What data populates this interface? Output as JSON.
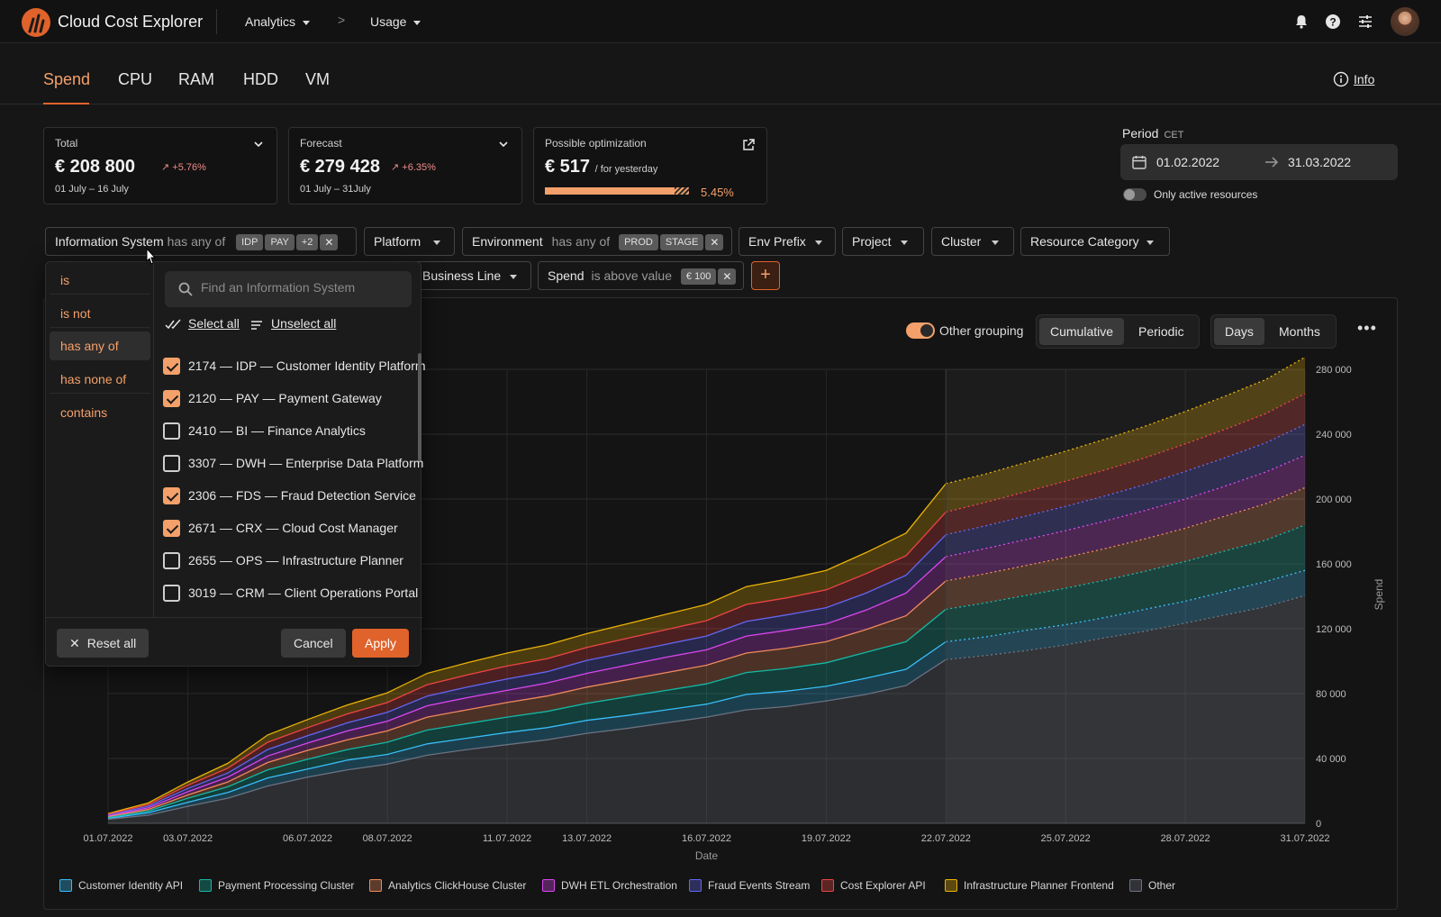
{
  "app": {
    "title": "Cloud Cost Explorer"
  },
  "nav": {
    "analytics": "Analytics",
    "usage": "Usage",
    "separator": ">"
  },
  "tabs": [
    {
      "label": "Spend",
      "active": true
    },
    {
      "label": "CPU"
    },
    {
      "label": "RAM"
    },
    {
      "label": "HDD"
    },
    {
      "label": "VM"
    }
  ],
  "info": {
    "label": "Info"
  },
  "cards": {
    "total": {
      "label": "Total",
      "value": "€ 208 800",
      "change": "+5.76%",
      "range": "01 July – 16 July"
    },
    "forecast": {
      "label": "Forecast",
      "value": "€ 279 428",
      "change": "+6.35%",
      "range": "01 July – 31July"
    },
    "optimization": {
      "label": "Possible optimization",
      "value": "€ 517",
      "suffix": "/ for yesterday",
      "percent": "5.45%"
    }
  },
  "period": {
    "label": "Period",
    "tz": "CET",
    "from": "01.02.2022",
    "to": "31.03.2022",
    "active_only": "Only active resources"
  },
  "filters": {
    "info_system": {
      "label": "Information System",
      "op": "has any of",
      "tags": [
        "IDP",
        "PAY",
        "+2"
      ]
    },
    "platform": {
      "label": "Platform"
    },
    "environment": {
      "label": "Environment",
      "op": "has any of",
      "tags": [
        "PROD",
        "STAGE"
      ]
    },
    "env_prefix": {
      "label": "Env Prefix"
    },
    "project": {
      "label": "Project"
    },
    "cluster": {
      "label": "Cluster"
    },
    "resource_category": {
      "label": "Resource Category"
    },
    "business_line": {
      "label": "Business Line"
    },
    "spend": {
      "label": "Spend",
      "op": "is above value",
      "tag": "€ 100"
    },
    "add": "+"
  },
  "dropdown": {
    "operators": [
      "is",
      "is not",
      "has any of",
      "has none of",
      "contains"
    ],
    "selected_operator": "has any of",
    "search_placeholder": "Find an Information System",
    "select_all": "Select all",
    "unselect_all": "Unselect all",
    "options": [
      {
        "label": "2174 — IDP — Customer Identity Platform",
        "checked": true
      },
      {
        "label": "2120 — PAY — Payment Gateway",
        "checked": true
      },
      {
        "label": "2410 — BI — Finance Analytics",
        "checked": false
      },
      {
        "label": "3307 — DWH — Enterprise Data Platform",
        "checked": false
      },
      {
        "label": "2306 — FDS — Fraud Detection Service",
        "checked": true
      },
      {
        "label": "2671 — CRX — Cloud Cost Manager",
        "checked": true
      },
      {
        "label": "2655 — OPS — Infrastructure Planner",
        "checked": false
      },
      {
        "label": "3019 — CRM — Client Operations Portal",
        "checked": false
      }
    ],
    "reset": "Reset all",
    "cancel": "Cancel",
    "apply": "Apply"
  },
  "chart_controls": {
    "other_grouping": "Other grouping",
    "mode": [
      "Cumulative",
      "Periodic"
    ],
    "mode_active": "Cumulative",
    "granularity": [
      "Days",
      "Months"
    ],
    "granularity_active": "Days",
    "more": "•••"
  },
  "chart_data": {
    "type": "area",
    "stacked": true,
    "xlabel": "Date",
    "ylabel": "Spend",
    "ylim": [
      0,
      280000
    ],
    "y_ticks": [
      "280 000",
      "240 000",
      "200 000",
      "160 000",
      "120 000",
      "80 000",
      "40 000",
      "0"
    ],
    "x_tick_labels": [
      "01.07.2022",
      "03.07.2022",
      "06.07.2022",
      "08.07.2022",
      "11.07.2022",
      "13.07.2022",
      "16.07.2022",
      "19.07.2022",
      "22.07.2022",
      "25.07.2022",
      "28.07.2022",
      "31.07.2022"
    ],
    "x_days": [
      1,
      2,
      3,
      4,
      5,
      6,
      7,
      8,
      9,
      10,
      11,
      12,
      13,
      14,
      15,
      16,
      17,
      18,
      19,
      20,
      21,
      22,
      23,
      24,
      25,
      26,
      27,
      28,
      29,
      30,
      31
    ],
    "forecast_from_day": 22,
    "grid": true,
    "legend_position": "bottom",
    "series": [
      {
        "name": "Other",
        "color": "#6b7280",
        "cumulative": [
          2500,
          5000,
          10500,
          15500,
          23000,
          28500,
          33000,
          36500,
          42000,
          45500,
          48500,
          51500,
          55500,
          58500,
          62000,
          65500,
          70000,
          72000,
          75500,
          79500,
          85000,
          101000,
          103500,
          106500,
          110000,
          114500,
          118500,
          123500,
          128500,
          133500,
          140500
        ]
      },
      {
        "name": "Customer Identity API",
        "color": "#38bdf8",
        "cumulative": [
          3000,
          6500,
          13000,
          19000,
          28000,
          33500,
          39000,
          42500,
          49000,
          52500,
          56000,
          59000,
          63500,
          66500,
          70000,
          73500,
          79500,
          81500,
          84500,
          89500,
          95000,
          112000,
          115000,
          119000,
          122500,
          127000,
          132000,
          137000,
          143000,
          149000,
          156000
        ]
      },
      {
        "name": "Payment Processing Cluster",
        "color": "#14b8a6",
        "cumulative": [
          3500,
          7500,
          15500,
          22500,
          33000,
          39500,
          45500,
          50000,
          57500,
          61500,
          65500,
          69000,
          74000,
          78000,
          82000,
          86000,
          93000,
          95500,
          99000,
          105500,
          112000,
          132000,
          136000,
          140500,
          145000,
          150000,
          155500,
          161500,
          168000,
          174500,
          184000
        ]
      },
      {
        "name": "Analytics ClickHouse Cluster",
        "color": "#f08a5d",
        "cumulative": [
          4000,
          8500,
          17500,
          25500,
          37500,
          45000,
          51500,
          57000,
          65500,
          70000,
          74500,
          78500,
          84000,
          88500,
          93000,
          97500,
          105000,
          108000,
          112000,
          119500,
          128000,
          149500,
          154000,
          159000,
          164000,
          169500,
          175500,
          182000,
          189500,
          197000,
          207000
        ]
      },
      {
        "name": "DWH ETL Orchestration",
        "color": "#d946ef",
        "cumulative": [
          4500,
          9500,
          19500,
          28500,
          41500,
          49500,
          57000,
          63000,
          72500,
          77500,
          82000,
          86500,
          92500,
          97500,
          102500,
          107000,
          115500,
          119000,
          123000,
          131500,
          142000,
          164500,
          169500,
          175000,
          180500,
          186500,
          193000,
          200000,
          208000,
          216500,
          227000
        ]
      },
      {
        "name": "Fraud Events Stream",
        "color": "#6366f1",
        "cumulative": [
          5000,
          10500,
          21500,
          31000,
          45500,
          54000,
          62000,
          68500,
          78500,
          84000,
          89000,
          93500,
          100500,
          105500,
          110500,
          115500,
          124500,
          128500,
          133000,
          142000,
          153000,
          178000,
          183500,
          189500,
          195500,
          202000,
          209000,
          217000,
          225500,
          234500,
          246000
        ]
      },
      {
        "name": "Cost Explorer API",
        "color": "#ef4444",
        "cumulative": [
          5500,
          11500,
          23500,
          34000,
          50000,
          59000,
          67500,
          74500,
          85500,
          91500,
          97000,
          101500,
          108500,
          114000,
          119500,
          125000,
          135000,
          139000,
          144000,
          154000,
          165000,
          192000,
          198000,
          204500,
          211000,
          218000,
          225500,
          234000,
          243000,
          252500,
          265000
        ]
      },
      {
        "name": "Infrastructure Planner Frontend",
        "color": "#eab308",
        "cumulative": [
          6000,
          12500,
          25500,
          37000,
          54500,
          64000,
          73000,
          80500,
          92500,
          99000,
          105000,
          110000,
          117000,
          123000,
          129000,
          135000,
          146000,
          150500,
          156000,
          167000,
          179000,
          209500,
          215500,
          222500,
          229500,
          237000,
          245000,
          254000,
          263500,
          273500,
          287500
        ]
      }
    ]
  }
}
